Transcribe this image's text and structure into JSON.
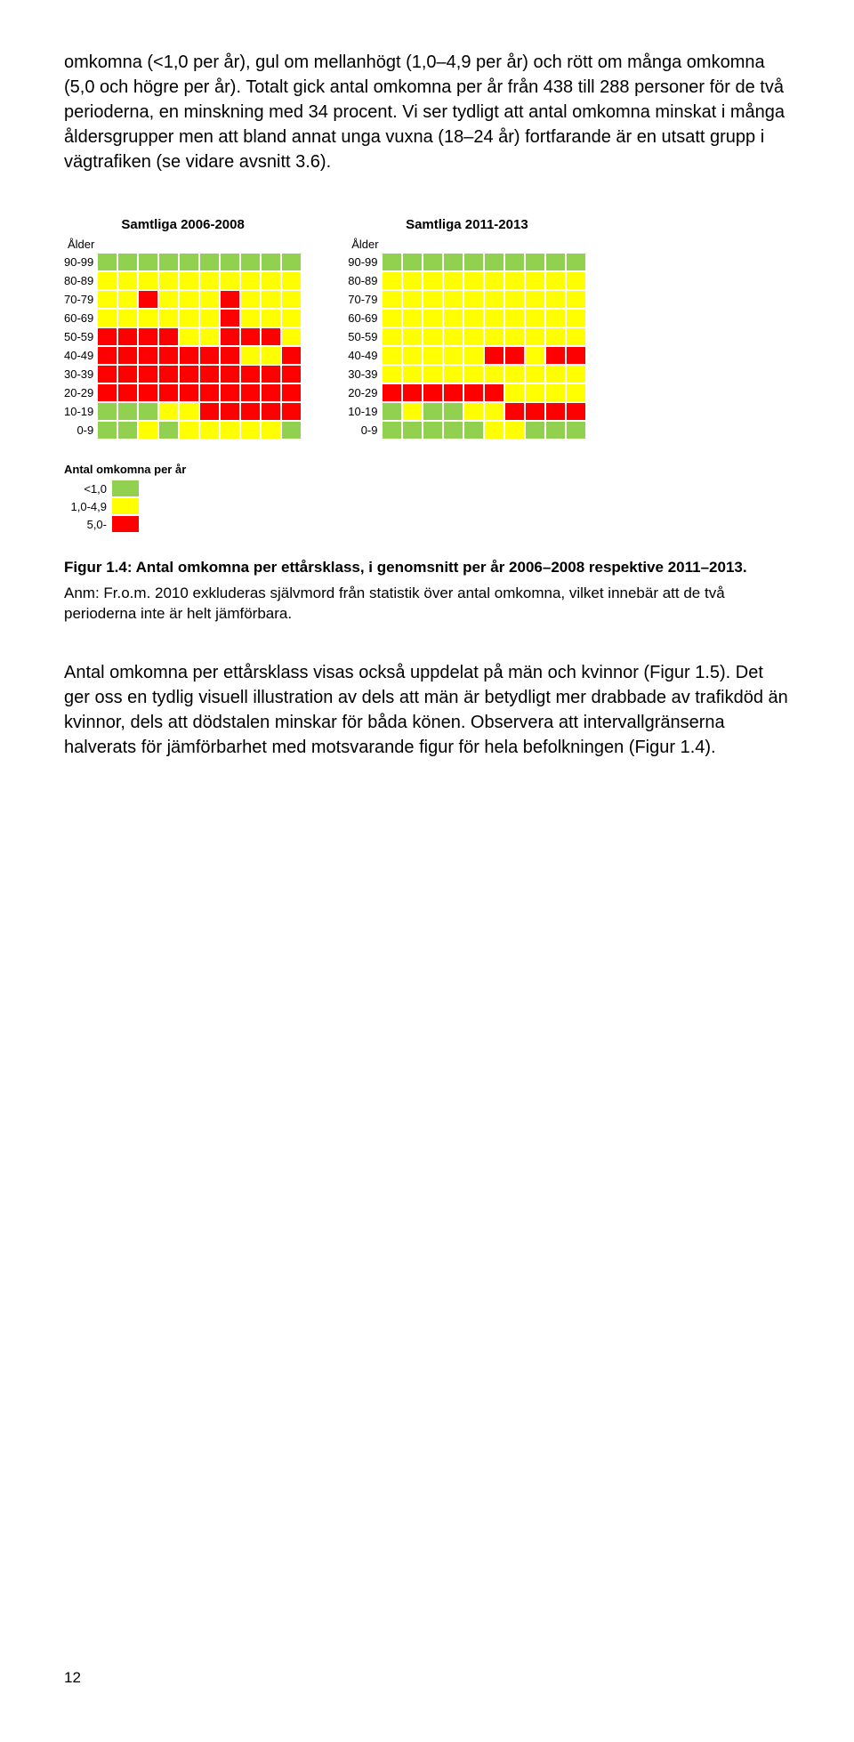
{
  "colors": {
    "green": "#92d050",
    "yellow": "#ffff00",
    "red": "#ff0000"
  },
  "paras": {
    "p1": "omkomna (<1,0 per år), gul om mellanhögt (1,0–4,9 per år) och rött om många omkomna (5,0 och högre per år). Totalt gick antal omkomna per år från 438 till 288 personer för de två perioderna, en minskning med 34 procent. Vi ser tydligt att antal omkomna minskat i många åldersgrupper men att bland annat unga vuxna (18–24 år) fortfarande är en utsatt grupp i vägtrafiken (se vidare avsnitt 3.6).",
    "p2": "Antal omkomna per ettårsklass visas också uppdelat på män och kvinnor (Figur 1.5). Det ger oss en tydlig visuell illustration av dels att män är betydligt mer drabbade av trafikdöd än kvinnor, dels att dödstalen minskar för båda könen. Observera att intervallgränserna halverats för jämförbarhet med motsvarande figur för hela befolkningen (Figur 1.4)."
  },
  "caption": {
    "lead": "Figur 1.4: Antal omkomna per ettårsklass, i genomsnitt per år 2006–2008 respektive 2011–2013.",
    "note": "Anm: Fr.o.m. 2010 exkluderas självmord från statistik över antal omkomna, vilket innebär att de två perioderna inte är helt jämförbara."
  },
  "heatmap": {
    "sub": "Ålder",
    "ylabels": [
      "90-99",
      "80-89",
      "70-79",
      "60-69",
      "50-59",
      "40-49",
      "30-39",
      "20-29",
      "10-19",
      "0-9"
    ],
    "cols": 10,
    "left": {
      "title": "Samtliga 2006-2008",
      "cells": [
        [
          "green",
          "green",
          "green",
          "green",
          "green",
          "green",
          "green",
          "green",
          "green",
          "green"
        ],
        [
          "yellow",
          "yellow",
          "yellow",
          "yellow",
          "yellow",
          "yellow",
          "yellow",
          "yellow",
          "yellow",
          "yellow"
        ],
        [
          "yellow",
          "yellow",
          "red",
          "yellow",
          "yellow",
          "yellow",
          "red",
          "yellow",
          "yellow",
          "yellow"
        ],
        [
          "yellow",
          "yellow",
          "yellow",
          "yellow",
          "yellow",
          "yellow",
          "red",
          "yellow",
          "yellow",
          "yellow"
        ],
        [
          "red",
          "red",
          "red",
          "red",
          "yellow",
          "yellow",
          "red",
          "red",
          "red",
          "yellow"
        ],
        [
          "red",
          "red",
          "red",
          "red",
          "red",
          "red",
          "red",
          "yellow",
          "yellow",
          "red"
        ],
        [
          "red",
          "red",
          "red",
          "red",
          "red",
          "red",
          "red",
          "red",
          "red",
          "red"
        ],
        [
          "red",
          "red",
          "red",
          "red",
          "red",
          "red",
          "red",
          "red",
          "red",
          "red"
        ],
        [
          "green",
          "green",
          "green",
          "yellow",
          "yellow",
          "red",
          "red",
          "red",
          "red",
          "red"
        ],
        [
          "green",
          "green",
          "yellow",
          "green",
          "yellow",
          "yellow",
          "yellow",
          "yellow",
          "yellow",
          "green"
        ]
      ]
    },
    "right": {
      "title": "Samtliga 2011-2013",
      "cells": [
        [
          "green",
          "green",
          "green",
          "green",
          "green",
          "green",
          "green",
          "green",
          "green",
          "green"
        ],
        [
          "yellow",
          "yellow",
          "yellow",
          "yellow",
          "yellow",
          "yellow",
          "yellow",
          "yellow",
          "yellow",
          "yellow"
        ],
        [
          "yellow",
          "yellow",
          "yellow",
          "yellow",
          "yellow",
          "yellow",
          "yellow",
          "yellow",
          "yellow",
          "yellow"
        ],
        [
          "yellow",
          "yellow",
          "yellow",
          "yellow",
          "yellow",
          "yellow",
          "yellow",
          "yellow",
          "yellow",
          "yellow"
        ],
        [
          "yellow",
          "yellow",
          "yellow",
          "yellow",
          "yellow",
          "yellow",
          "yellow",
          "yellow",
          "yellow",
          "yellow"
        ],
        [
          "yellow",
          "yellow",
          "yellow",
          "yellow",
          "yellow",
          "red",
          "red",
          "yellow",
          "red",
          "red"
        ],
        [
          "yellow",
          "yellow",
          "yellow",
          "yellow",
          "yellow",
          "yellow",
          "yellow",
          "yellow",
          "yellow",
          "yellow"
        ],
        [
          "red",
          "red",
          "red",
          "red",
          "red",
          "red",
          "yellow",
          "yellow",
          "yellow",
          "yellow"
        ],
        [
          "green",
          "yellow",
          "green",
          "green",
          "yellow",
          "yellow",
          "red",
          "red",
          "red",
          "red"
        ],
        [
          "green",
          "green",
          "green",
          "green",
          "green",
          "yellow",
          "yellow",
          "green",
          "green",
          "green"
        ]
      ]
    }
  },
  "legend": {
    "title": "Antal omkomna per år",
    "rows": [
      {
        "label": "<1,0",
        "color": "green"
      },
      {
        "label": "1,0-4,9",
        "color": "yellow"
      },
      {
        "label": "5,0-",
        "color": "red"
      }
    ]
  },
  "pageNumber": "12"
}
